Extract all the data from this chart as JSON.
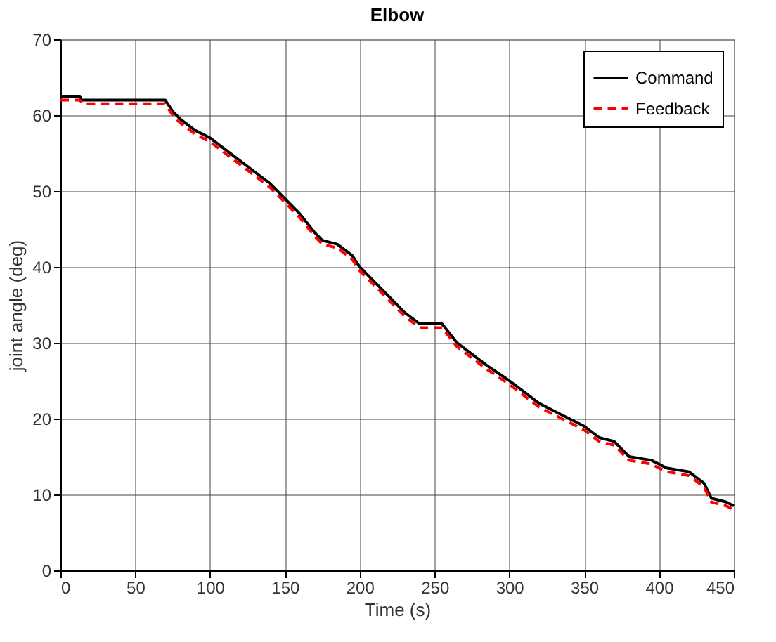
{
  "chart_data": {
    "type": "line",
    "title": "Elbow",
    "xlabel": "Time (s)",
    "ylabel": "joint angle (deg)",
    "xlim": [
      0,
      450
    ],
    "xticks": [
      0,
      50,
      100,
      150,
      200,
      250,
      300,
      350,
      400,
      450
    ],
    "ylim": [
      0,
      70
    ],
    "yticks": [
      0,
      10,
      20,
      30,
      40,
      50,
      60,
      70
    ],
    "grid": true,
    "legend": "top right",
    "series": [
      {
        "name": "Command",
        "color": "#000000",
        "line_style": "solid",
        "x": [
          0,
          13,
          14,
          70,
          75,
          80,
          90,
          100,
          110,
          120,
          130,
          140,
          150,
          160,
          170,
          175,
          185,
          195,
          200,
          210,
          220,
          230,
          240,
          255,
          265,
          275,
          285,
          300,
          310,
          320,
          330,
          340,
          350,
          360,
          370,
          380,
          395,
          405,
          420,
          430,
          435,
          445,
          450
        ],
        "values": [
          62.5,
          62.5,
          62,
          62,
          60.5,
          59.5,
          58,
          57,
          55.5,
          54,
          52.5,
          51,
          49,
          47,
          44.5,
          43.5,
          43,
          41.5,
          40,
          38,
          36,
          34,
          32.5,
          32.5,
          30,
          28.5,
          27,
          25,
          23.5,
          22,
          21,
          20,
          19,
          17.5,
          17,
          15,
          14.5,
          13.5,
          13,
          11.5,
          9.5,
          9,
          8.5
        ]
      },
      {
        "name": "Feedback",
        "color": "#ff0000",
        "line_style": "dashed",
        "x": [
          0,
          13,
          15,
          70,
          75,
          80,
          90,
          100,
          110,
          120,
          130,
          140,
          150,
          160,
          170,
          175,
          185,
          195,
          200,
          210,
          220,
          230,
          240,
          255,
          265,
          275,
          285,
          300,
          310,
          320,
          330,
          340,
          350,
          360,
          370,
          380,
          395,
          405,
          420,
          430,
          435,
          445,
          450
        ],
        "values": [
          62,
          62,
          61.5,
          61.5,
          60,
          59,
          57.5,
          56.5,
          55,
          53.5,
          52,
          50.5,
          48.5,
          46.5,
          44,
          43,
          42.5,
          41,
          39.5,
          37.5,
          35.5,
          33.5,
          32,
          32,
          29.5,
          28,
          26.5,
          24.5,
          23,
          21.5,
          20.5,
          19.5,
          18.5,
          17,
          16.5,
          14.5,
          14,
          13,
          12.5,
          11,
          9,
          8.5,
          8
        ]
      }
    ]
  }
}
